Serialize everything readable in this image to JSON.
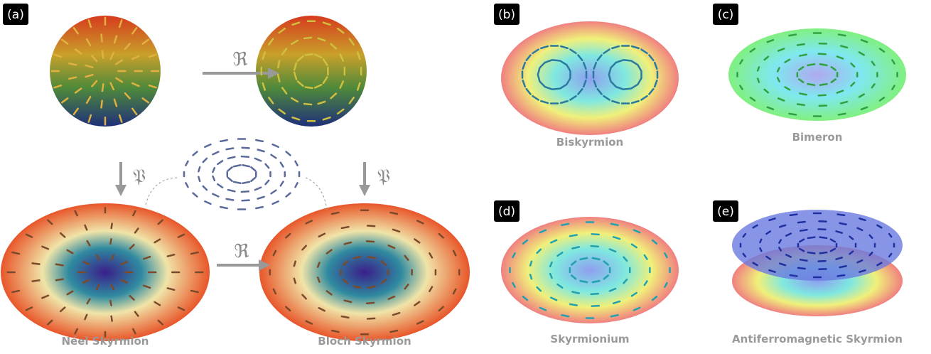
{
  "panel_a": {
    "label": "(a)",
    "operators": [
      "ℜ",
      "𝔓",
      "𝔓",
      "ℜ"
    ],
    "captions": [
      "Néel Skyrmion",
      "Bloch Skyrmion"
    ]
  },
  "panel_b": {
    "label": "(b)",
    "caption": "Biskyrmion"
  },
  "panel_c": {
    "label": "(c)",
    "caption": "Bimeron"
  },
  "panel_d": {
    "label": "(d)",
    "caption": "Skyrmionium"
  },
  "panel_e": {
    "label": "(e)",
    "caption": "Antiferromagnetic Skyrmion"
  }
}
